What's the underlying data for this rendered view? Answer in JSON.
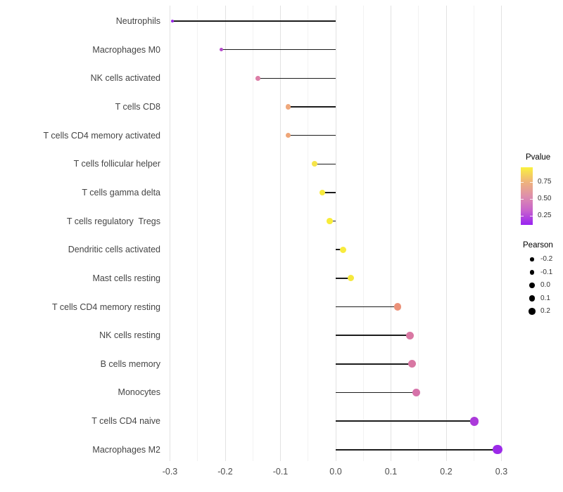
{
  "chart_data": {
    "type": "scatter",
    "subtype": "lollipop",
    "orientation": "horizontal",
    "title": "",
    "xlabel": "",
    "ylabel": "",
    "background": "#FFFFFF",
    "grid": "vertical, major every 0.1 and minor every 0.05",
    "xlim": [
      -0.33,
      0.33
    ],
    "x_tick_labels": [
      "-0.3",
      "-0.2",
      "-0.1",
      "0.0",
      "0.1",
      "0.2",
      "0.3"
    ],
    "categories": [
      "Neutrophils",
      "Macrophages M0",
      "NK cells activated",
      "T cells CD8",
      "T cells CD4 memory activated",
      "T cells follicular helper",
      "T cells gamma delta",
      "T cells regulatory  Tregs",
      "Dendritic cells activated",
      "Mast cells resting",
      "T cells CD4 memory resting",
      "NK cells resting",
      "B cells memory",
      "Monocytes",
      "T cells CD4 naive",
      "Macrophages M2"
    ],
    "series": [
      {
        "name": "Pearson",
        "values": [
          -0.295,
          -0.207,
          -0.141,
          -0.086,
          -0.086,
          -0.038,
          -0.024,
          -0.011,
          0.014,
          0.027,
          0.112,
          0.134,
          0.138,
          0.146,
          0.251,
          0.293
        ]
      }
    ],
    "point_colors": [
      "#9826E6",
      "#B44CC9",
      "#DC7EA7",
      "#EFA87C",
      "#EFA678",
      "#F6E44A",
      "#F7EA3D",
      "#F8EC39",
      "#F8EB3D",
      "#F5E83D",
      "#EB9179",
      "#D978A3",
      "#D877A3",
      "#D672A9",
      "#AB3ADA",
      "#9C2AE9"
    ],
    "segment_color": "#1c1c1c",
    "legends": {
      "pvalue": {
        "title": "Pvalue",
        "tick_labels": [
          "0.75",
          "0.50",
          "0.25"
        ],
        "gradient_top_to_bottom": [
          "#FAF13E",
          "#EFB47B",
          "#DE8FAB",
          "#C863CC",
          "#9823F2"
        ]
      },
      "pearson": {
        "title": "Pearson",
        "item_labels": [
          "-0.2",
          "-0.1",
          "0.0",
          "0.1",
          "0.2"
        ],
        "dot_color": "#000000"
      }
    }
  }
}
